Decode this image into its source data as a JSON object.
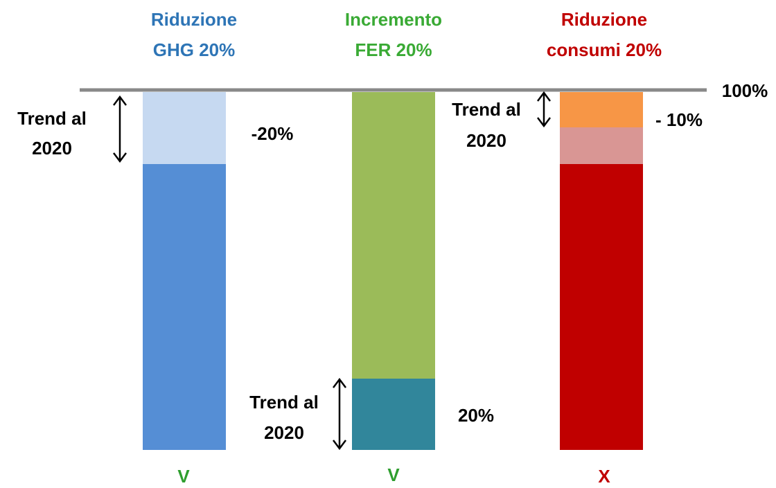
{
  "top_label": "100%",
  "columns": [
    {
      "title": [
        "Riduzione",
        "GHG 20%"
      ],
      "label": "-20%",
      "trend": [
        "Trend al",
        "2020"
      ],
      "verdict": "V"
    },
    {
      "title": [
        "Incremento",
        "FER 20%"
      ],
      "label": "20%",
      "trend": [
        "Trend al",
        "2020"
      ],
      "verdict": "V"
    },
    {
      "title": [
        "Riduzione",
        "consumi 20%"
      ],
      "label": "- 10%",
      "trend": [
        "Trend al",
        "2020"
      ],
      "verdict": "X"
    }
  ]
}
